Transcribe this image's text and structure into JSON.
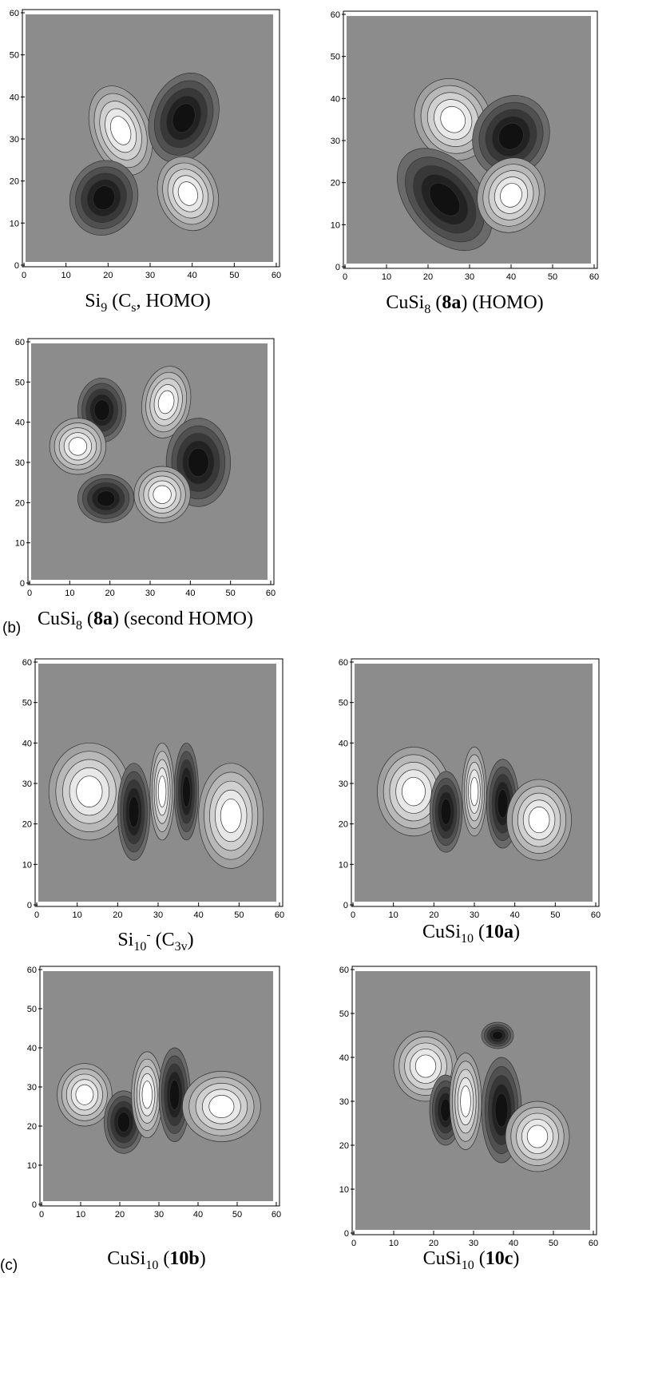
{
  "axes": {
    "xlim": [
      0,
      60
    ],
    "ylim": [
      0,
      60
    ],
    "xticks": [
      0,
      10,
      20,
      30,
      40,
      50,
      60
    ],
    "yticks": [
      0,
      10,
      20,
      30,
      40,
      50,
      60
    ]
  },
  "panels": [
    {
      "caption": [
        {
          "text": "Si",
          "style": "normal"
        },
        {
          "text": "9",
          "style": "sub"
        },
        {
          "text": " (C",
          "style": "normal"
        },
        {
          "text": "s",
          "style": "sub"
        },
        {
          "text": ", HOMO)",
          "style": "normal"
        }
      ]
    },
    {
      "caption": [
        {
          "text": "CuSi",
          "style": "normal"
        },
        {
          "text": "8",
          "style": "sub"
        },
        {
          "text": " (",
          "style": "normal"
        },
        {
          "text": "8a",
          "style": "bold"
        },
        {
          "text": ") (HOMO)",
          "style": "normal"
        }
      ]
    },
    {
      "label": "(b)",
      "caption": [
        {
          "text": "CuSi",
          "style": "normal"
        },
        {
          "text": "8",
          "style": "sub"
        },
        {
          "text": " (",
          "style": "normal"
        },
        {
          "text": "8a",
          "style": "bold"
        },
        {
          "text": ") (second HOMO)",
          "style": "normal"
        }
      ]
    },
    {
      "caption": [
        {
          "text": "Si",
          "style": "normal"
        },
        {
          "text": "10",
          "style": "sub"
        },
        {
          "text": "-",
          "style": "sup"
        },
        {
          "text": " (C",
          "style": "normal"
        },
        {
          "text": "3v",
          "style": "sub"
        },
        {
          "text": ")",
          "style": "normal"
        }
      ]
    },
    {
      "caption": [
        {
          "text": "CuSi",
          "style": "normal"
        },
        {
          "text": "10",
          "style": "sub"
        },
        {
          "text": " (",
          "style": "normal"
        },
        {
          "text": "10a",
          "style": "bold"
        },
        {
          "text": ")",
          "style": "normal"
        }
      ]
    },
    {
      "label": "(c)",
      "caption": [
        {
          "text": "CuSi",
          "style": "normal"
        },
        {
          "text": "10",
          "style": "sub"
        },
        {
          "text": " (",
          "style": "normal"
        },
        {
          "text": "10b",
          "style": "bold"
        },
        {
          "text": ")",
          "style": "normal"
        }
      ]
    },
    {
      "caption": [
        {
          "text": "CuSi",
          "style": "normal"
        },
        {
          "text": "10",
          "style": "sub"
        },
        {
          "text": " (",
          "style": "normal"
        },
        {
          "text": "10c",
          "style": "bold"
        },
        {
          "text": ")",
          "style": "normal"
        }
      ]
    }
  ]
}
